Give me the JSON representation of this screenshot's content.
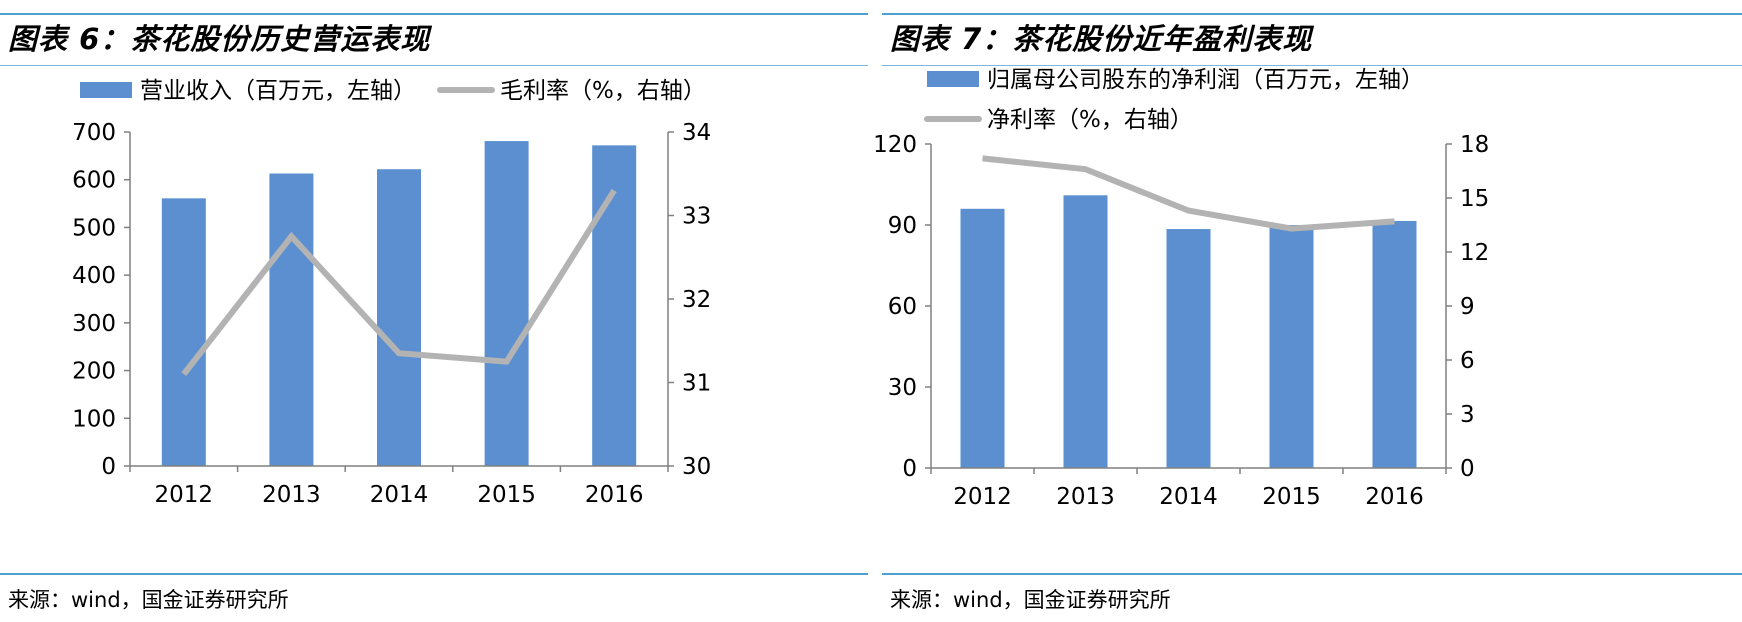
{
  "charts": [
    {
      "id": "fig6",
      "figure_title": "图表 6：茶花股份历史营运表现",
      "source": "来源：wind，国金证券研究所",
      "legend": {
        "bar": "营业收入（百万元，左轴）",
        "line": "毛利率（%，右轴）"
      },
      "colors": {
        "bar": "#5b8fd0",
        "line": "#b3b3b3",
        "axis": "#808080",
        "rule": "#4f9fd4"
      }
    },
    {
      "id": "fig7",
      "figure_title": "图表 7：茶花股份近年盈利表现",
      "source": "来源：wind，国金证券研究所",
      "legend": {
        "bar": "归属母公司股东的净利润（百万元，左轴）",
        "line": "净利率（%，右轴）"
      },
      "colors": {
        "bar": "#5b8fd0",
        "line": "#b3b3b3",
        "axis": "#808080",
        "rule": "#4f9fd4"
      }
    }
  ],
  "chart_data": [
    {
      "type": "bar+line",
      "title": "茶花股份历史营运表现",
      "categories": [
        "2012",
        "2013",
        "2014",
        "2015",
        "2016"
      ],
      "series": [
        {
          "name": "营业收入（百万元，左轴）",
          "type": "bar",
          "axis": "left",
          "values": [
            561,
            613,
            622,
            681,
            672
          ]
        },
        {
          "name": "毛利率（%，右轴）",
          "type": "line",
          "axis": "right",
          "values": [
            31.1,
            32.75,
            31.35,
            31.25,
            33.3
          ]
        }
      ],
      "y_left": {
        "min": 0,
        "max": 700,
        "ticks": [
          0,
          100,
          200,
          300,
          400,
          500,
          600,
          700
        ]
      },
      "y_right": {
        "min": 30,
        "max": 34,
        "ticks": [
          30,
          31,
          32,
          33,
          34
        ]
      },
      "grid": false,
      "legend_position": "top"
    },
    {
      "type": "bar+line",
      "title": "茶花股份近年盈利表现",
      "categories": [
        "2012",
        "2013",
        "2014",
        "2015",
        "2016"
      ],
      "series": [
        {
          "name": "归属母公司股东的净利润（百万元，左轴）",
          "type": "bar",
          "axis": "left",
          "values": [
            96,
            101,
            88.5,
            90,
            91.5
          ]
        },
        {
          "name": "净利率（%，右轴）",
          "type": "line",
          "axis": "right",
          "values": [
            17.2,
            16.6,
            14.3,
            13.3,
            13.7
          ]
        }
      ],
      "y_left": {
        "min": 0,
        "max": 120,
        "ticks": [
          0,
          30,
          60,
          90,
          120
        ]
      },
      "y_right": {
        "min": 0,
        "max": 18,
        "ticks": [
          0,
          3,
          6,
          9,
          12,
          15,
          18
        ]
      },
      "grid": false,
      "legend_position": "top"
    }
  ]
}
